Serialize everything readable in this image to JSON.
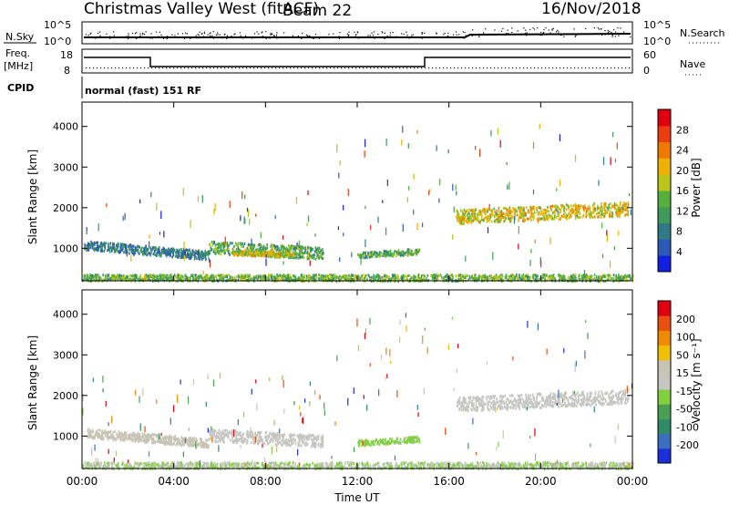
{
  "header": {
    "title": "Christmas Valley West (fitACF)",
    "beam": "Beam 22",
    "date": "16/Nov/2018"
  },
  "top_panels": {
    "nsky_label": "N.Sky",
    "nsky_ticks": [
      "10^5",
      "10^0"
    ],
    "nsearch_label": "N.Search",
    "nsearch_ticks": [
      "10^5",
      "10^0"
    ],
    "freq_label_1": "Freq.",
    "freq_label_2": "[MHz]",
    "freq_ticks": [
      "18",
      "8"
    ],
    "nave_label": "Nave",
    "nave_ticks": [
      "60",
      "0"
    ],
    "cpid_label": "CPID",
    "cpid_value": "normal (fast) 151 RF"
  },
  "colors": {
    "power_scale": [
      "#1020e0",
      "#2c58b8",
      "#2f7a86",
      "#3f9a5c",
      "#56b03c",
      "#bcc41a",
      "#f0b000",
      "#f07a00",
      "#ec3c10",
      "#e00010"
    ],
    "velocity_scale": [
      "#1a2fd8",
      "#3a6ec0",
      "#2f8a6a",
      "#4aa050",
      "#80d040",
      "#c6c6c0",
      "#c8c4b4",
      "#f0c000",
      "#f08a00",
      "#e85010",
      "#e00010"
    ]
  },
  "chart_data": [
    {
      "type": "heatmap",
      "name": "Power",
      "ylabel": "Slant Range [km]",
      "yticks": [
        "4000",
        "3000",
        "2000",
        "1000"
      ],
      "ylim": [
        200,
        4600
      ],
      "xlabel": "Time UT",
      "xticks": [
        "00:00",
        "04:00",
        "08:00",
        "12:00",
        "16:00",
        "20:00",
        "00:00"
      ],
      "xlim_hours": [
        0,
        24
      ],
      "colorbar_label": "Power [dB]",
      "colorbar_ticks": [
        "28",
        "24",
        "20",
        "16",
        "12",
        "8",
        "4"
      ],
      "colorbar_range": [
        0,
        32
      ],
      "scatter_regions": [
        {
          "t_start": 0.2,
          "t_end": 5.5,
          "range_center_start": 1100,
          "range_center_end": 850,
          "width_km": 220,
          "value": 8
        },
        {
          "t_start": 5.5,
          "t_end": 10.5,
          "range_center_start": 1050,
          "range_center_end": 900,
          "width_km": 300,
          "value": 13
        },
        {
          "t_start": 6.5,
          "t_end": 9.2,
          "range_center_start": 900,
          "range_center_end": 880,
          "width_km": 120,
          "value": 19
        },
        {
          "t_start": 12.0,
          "t_end": 14.7,
          "range_center_start": 850,
          "range_center_end": 950,
          "width_km": 140,
          "value": 12
        },
        {
          "t_start": 16.3,
          "t_end": 23.8,
          "range_center_start": 1800,
          "range_center_end": 2000,
          "width_km": 350,
          "value": 19
        },
        {
          "t_start": 0.0,
          "t_end": 24.0,
          "range_center_start": 300,
          "range_center_end": 300,
          "width_km": 160,
          "value": 14
        }
      ]
    },
    {
      "type": "heatmap",
      "name": "Velocity",
      "ylabel": "Slant Range [km]",
      "yticks": [
        "4000",
        "3000",
        "2000",
        "1000"
      ],
      "ylim": [
        200,
        4600
      ],
      "xlabel": "Time UT",
      "xticks": [
        "00:00",
        "04:00",
        "08:00",
        "12:00",
        "16:00",
        "20:00",
        "00:00"
      ],
      "xlim_hours": [
        0,
        24
      ],
      "colorbar_label": "Velocity [m s⁻¹]",
      "colorbar_ticks": [
        "200",
        "100",
        "50",
        "15",
        "-15",
        "-50",
        "-100",
        "-200"
      ],
      "colorbar_range": [
        -250,
        250
      ],
      "scatter_regions": [
        {
          "t_start": 0.2,
          "t_end": 5.5,
          "range_center_start": 1100,
          "range_center_end": 850,
          "width_km": 220,
          "value": 40
        },
        {
          "t_start": 5.5,
          "t_end": 10.5,
          "range_center_start": 1050,
          "range_center_end": 900,
          "width_km": 300,
          "value": 0
        },
        {
          "t_start": 12.0,
          "t_end": 14.7,
          "range_center_start": 850,
          "range_center_end": 950,
          "width_km": 140,
          "value": -40
        },
        {
          "t_start": 16.3,
          "t_end": 23.8,
          "range_center_start": 1800,
          "range_center_end": 2000,
          "width_km": 350,
          "value": 0
        },
        {
          "t_start": 0.0,
          "t_end": 24.0,
          "range_center_start": 300,
          "range_center_end": 300,
          "width_km": 160,
          "value": -20
        }
      ]
    }
  ]
}
